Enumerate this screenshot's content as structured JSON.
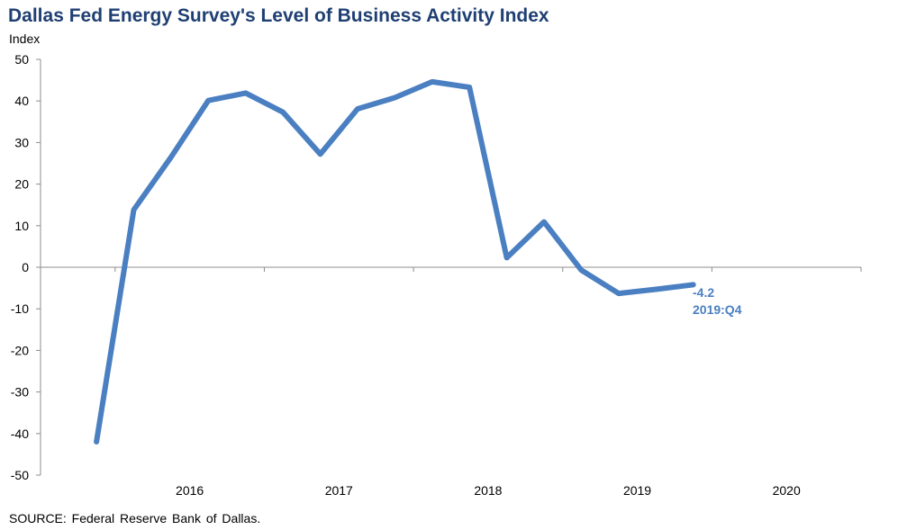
{
  "title": "Dallas Fed Energy Survey's Level of Business Activity Index",
  "source": "SOURCE:  Federal Reserve  Bank of Dallas.",
  "colors": {
    "title": "#1f3f73",
    "series": "#4a7fc1",
    "axis": "#8c8c8c"
  },
  "chart_data": {
    "type": "line",
    "title": "Dallas Fed Energy Survey's Level of Business Activity Index",
    "ylabel": "Index",
    "xlabel": "",
    "ylim": [
      -50,
      50
    ],
    "yticks": [
      50,
      40,
      30,
      20,
      10,
      0,
      -10,
      -20,
      -30,
      -40,
      -50
    ],
    "grid": false,
    "x_tick_labels": [
      "2016",
      "2017",
      "2018",
      "2019",
      "2020"
    ],
    "x_range": [
      "2015:Q3",
      "2020:Q4"
    ],
    "series": [
      {
        "x": [
          "2015:Q4",
          "2016:Q1",
          "2016:Q2",
          "2016:Q3",
          "2016:Q4",
          "2017:Q1",
          "2017:Q2",
          "2017:Q3",
          "2017:Q4",
          "2018:Q1",
          "2018:Q2",
          "2018:Q3",
          "2018:Q4",
          "2019:Q1",
          "2019:Q2",
          "2019:Q3",
          "2019:Q4"
        ],
        "values": [
          -42.0,
          13.8,
          26.5,
          40.1,
          41.9,
          37.3,
          27.2,
          38.1,
          40.8,
          44.6,
          43.3,
          2.3,
          10.9,
          -0.7,
          -6.3,
          -5.3,
          -4.2
        ],
        "color": "#4a7fc1"
      }
    ],
    "annotations": [
      {
        "value_label": "-4.2",
        "period_label": "2019:Q4"
      }
    ]
  }
}
